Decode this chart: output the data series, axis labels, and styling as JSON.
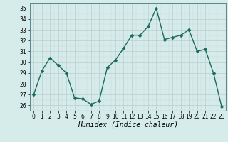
{
  "x": [
    0,
    1,
    2,
    3,
    4,
    5,
    6,
    7,
    8,
    9,
    10,
    11,
    12,
    13,
    14,
    15,
    16,
    17,
    18,
    19,
    20,
    21,
    22,
    23
  ],
  "y": [
    27.0,
    29.2,
    30.4,
    29.7,
    29.0,
    26.7,
    26.6,
    26.1,
    26.4,
    29.5,
    30.2,
    31.3,
    32.5,
    32.5,
    33.3,
    35.0,
    32.1,
    32.3,
    32.5,
    33.0,
    31.0,
    31.2,
    29.0,
    25.9
  ],
  "line_color": "#1a6b5a",
  "marker": "D",
  "marker_size": 2.5,
  "line_width": 1.0,
  "bg_color": "#d5ecea",
  "xlabel": "Humidex (Indice chaleur)",
  "xlim": [
    -0.5,
    23.5
  ],
  "ylim": [
    25.5,
    35.5
  ],
  "yticks": [
    26,
    27,
    28,
    29,
    30,
    31,
    32,
    33,
    34,
    35
  ],
  "xticks": [
    0,
    1,
    2,
    3,
    4,
    5,
    6,
    7,
    8,
    9,
    10,
    11,
    12,
    13,
    14,
    15,
    16,
    17,
    18,
    19,
    20,
    21,
    22,
    23
  ],
  "tick_label_size": 5.5,
  "xlabel_size": 7.0
}
